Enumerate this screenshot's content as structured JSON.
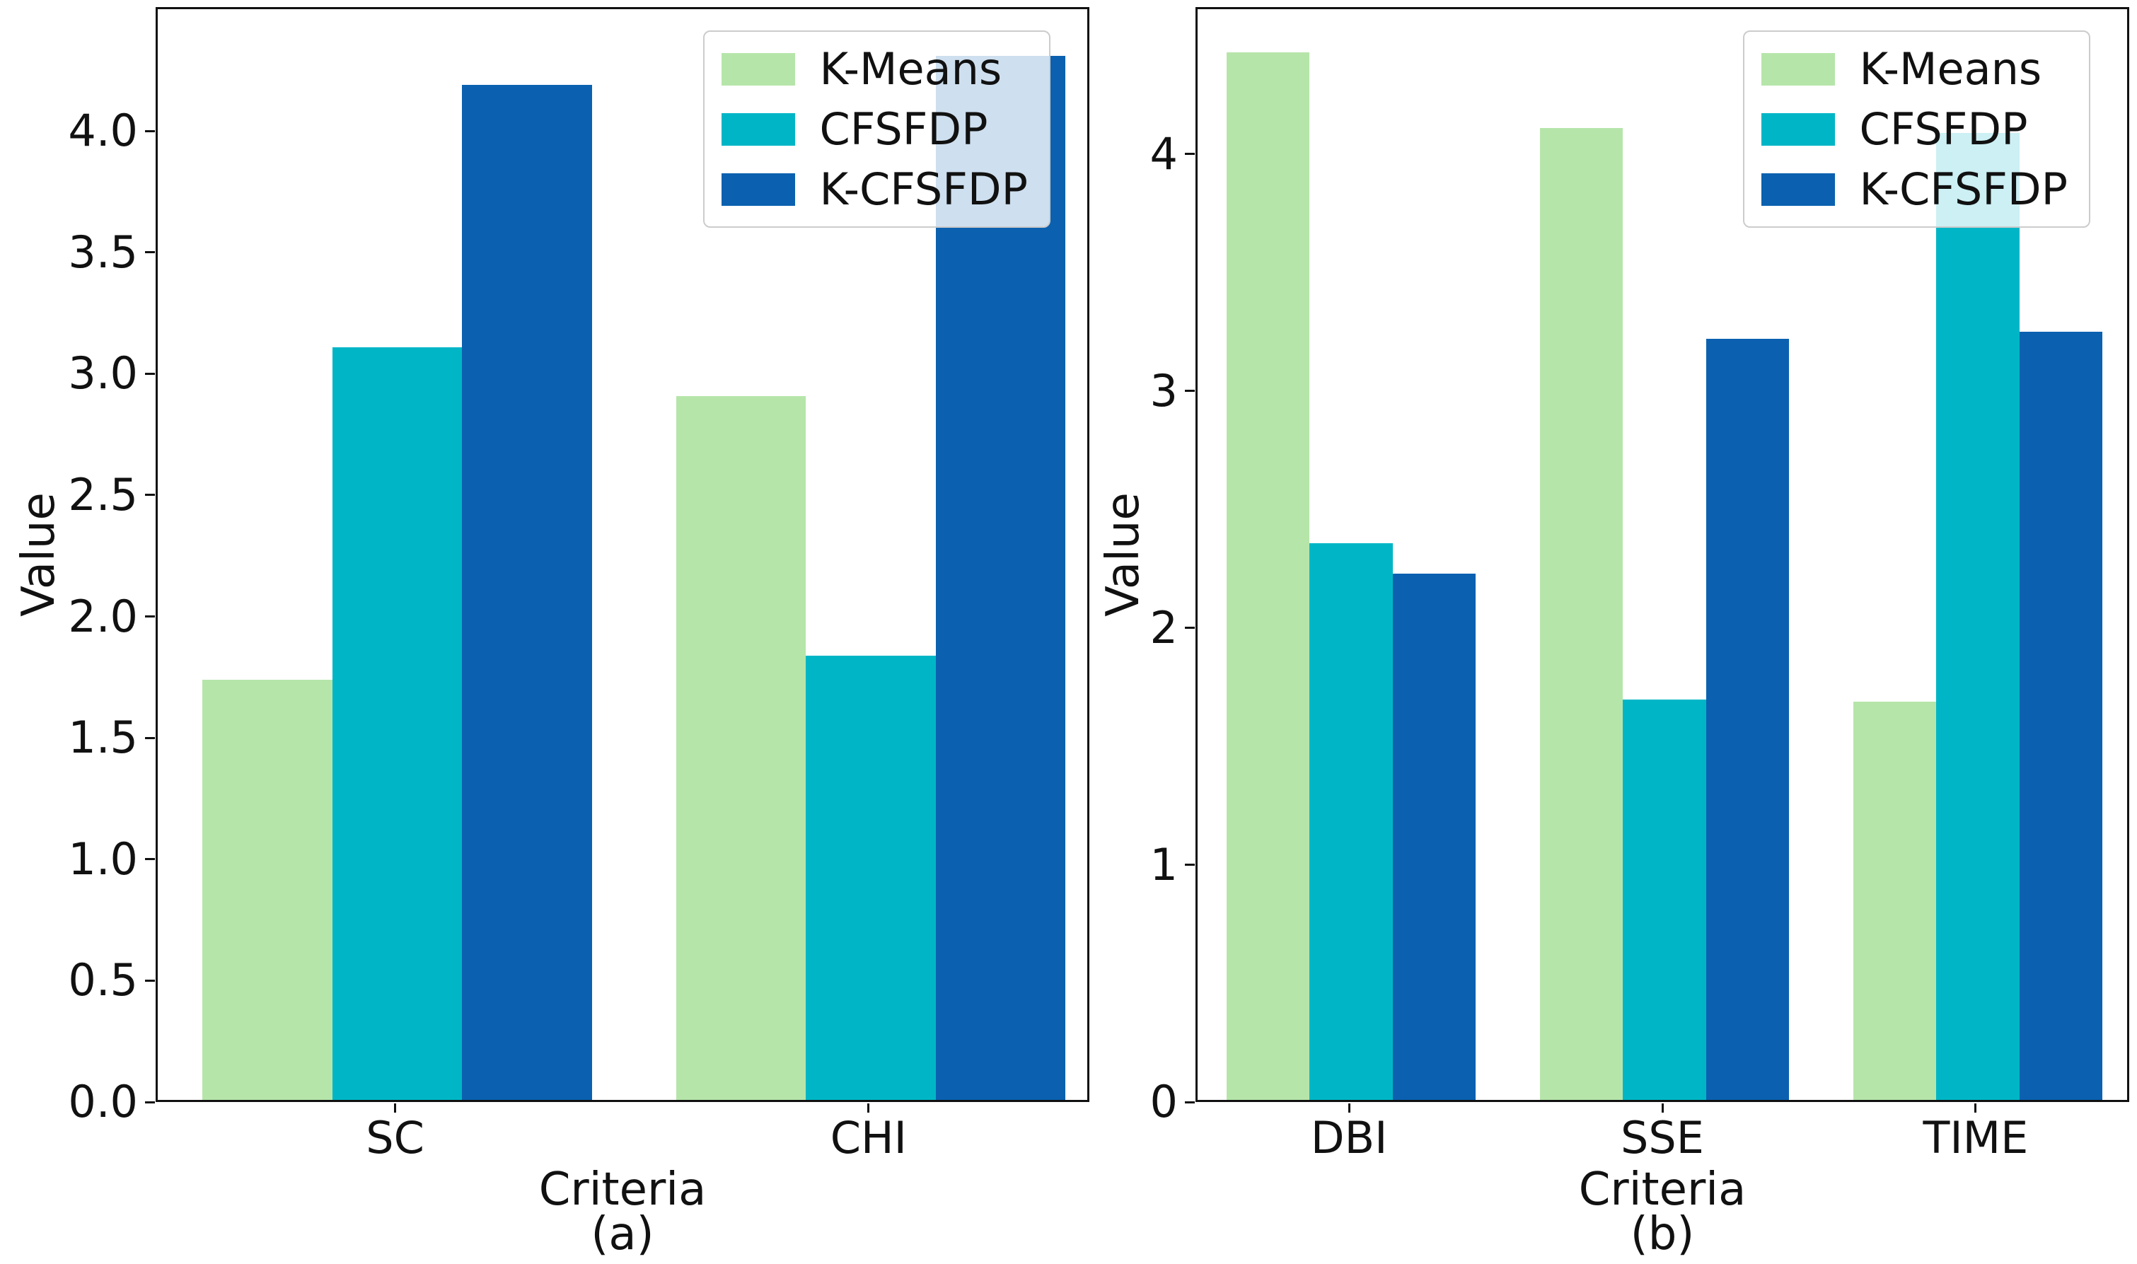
{
  "figure": {
    "background": "#ffffff",
    "text_color": "#111111",
    "spine_color": "#111111",
    "legend_border_color": "#cccccc"
  },
  "chart_data": [
    {
      "id": "a",
      "type": "bar",
      "title": "",
      "xlabel": "Criteria",
      "ylabel": "Value",
      "caption": "(a)",
      "categories": [
        "SC",
        "CHI"
      ],
      "series": [
        {
          "name": "K-Means",
          "color": "#b6e5aa",
          "values": [
            1.73,
            2.9
          ]
        },
        {
          "name": "CFSFDP",
          "color": "#00b6c6",
          "values": [
            3.1,
            1.83
          ]
        },
        {
          "name": "K-CFSFDP",
          "color": "#0b61b0",
          "values": [
            4.18,
            4.3
          ]
        }
      ],
      "ylim": [
        0,
        4.51
      ],
      "yticks": [
        {
          "label": "0.0",
          "value": 0.0
        },
        {
          "label": "0.5",
          "value": 0.5
        },
        {
          "label": "1.0",
          "value": 1.0
        },
        {
          "label": "1.5",
          "value": 1.5
        },
        {
          "label": "2.0",
          "value": 2.0
        },
        {
          "label": "2.5",
          "value": 2.5
        },
        {
          "label": "3.0",
          "value": 3.0
        },
        {
          "label": "3.5",
          "value": 3.5
        },
        {
          "label": "4.0",
          "value": 4.0
        }
      ],
      "legend_position": "upper right",
      "grid": false
    },
    {
      "id": "b",
      "type": "bar",
      "title": "",
      "xlabel": "Criteria",
      "ylabel": "Value",
      "caption": "(b)",
      "categories": [
        "DBI",
        "SSE",
        "TIME"
      ],
      "series": [
        {
          "name": "K-Means",
          "color": "#b6e5aa",
          "values": [
            4.42,
            4.1,
            1.68
          ]
        },
        {
          "name": "CFSFDP",
          "color": "#00b6c6",
          "values": [
            2.35,
            1.69,
            4.08
          ]
        },
        {
          "name": "K-CFSFDP",
          "color": "#0b61b0",
          "values": [
            2.22,
            3.21,
            3.24
          ]
        }
      ],
      "ylim": [
        0,
        4.62
      ],
      "yticks": [
        {
          "label": "0",
          "value": 0
        },
        {
          "label": "1",
          "value": 1
        },
        {
          "label": "2",
          "value": 2
        },
        {
          "label": "3",
          "value": 3
        },
        {
          "label": "4",
          "value": 4
        }
      ],
      "legend_position": "upper right",
      "grid": false
    }
  ]
}
